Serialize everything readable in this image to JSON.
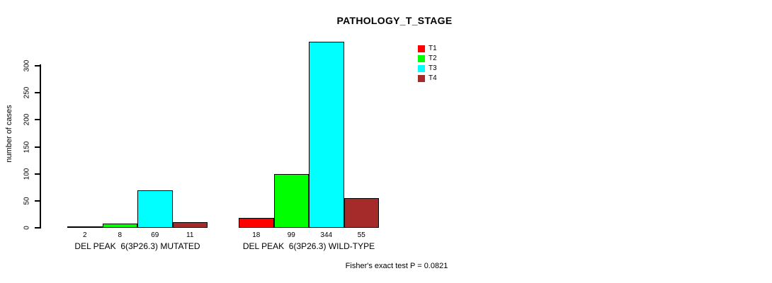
{
  "title": "PATHOLOGY_T_STAGE",
  "y_axis": {
    "label": "number of cases",
    "ticks": [
      0,
      50,
      100,
      150,
      200,
      250,
      300
    ]
  },
  "footer": {
    "text": "Fisher's exact test P = 0.0821"
  },
  "chart_data": {
    "type": "bar",
    "title": "PATHOLOGY_T_STAGE",
    "xlabel": "",
    "ylabel": "number of cases",
    "ylim": [
      0,
      344
    ],
    "yticks": [
      0,
      50,
      100,
      150,
      200,
      250,
      300
    ],
    "categories": [
      "DEL PEAK  6(3P26.3) MUTATED",
      "DEL PEAK  6(3P26.3) WILD-TYPE"
    ],
    "series": [
      {
        "name": "T1",
        "color": "#FF0000",
        "values": [
          2,
          18
        ]
      },
      {
        "name": "T2",
        "color": "#00FF00",
        "values": [
          8,
          99
        ]
      },
      {
        "name": "T3",
        "color": "#00FFFF",
        "values": [
          69,
          344
        ]
      },
      {
        "name": "T4",
        "color": "#A52A2A",
        "values": [
          11,
          55
        ]
      }
    ],
    "bar_value_labels": [
      [
        "2",
        "8",
        "69",
        "11"
      ],
      [
        "18",
        "99",
        "344",
        "55"
      ]
    ],
    "legend_position": "top-right",
    "grid": false,
    "annotation": "Fisher's exact test P = 0.0821"
  }
}
